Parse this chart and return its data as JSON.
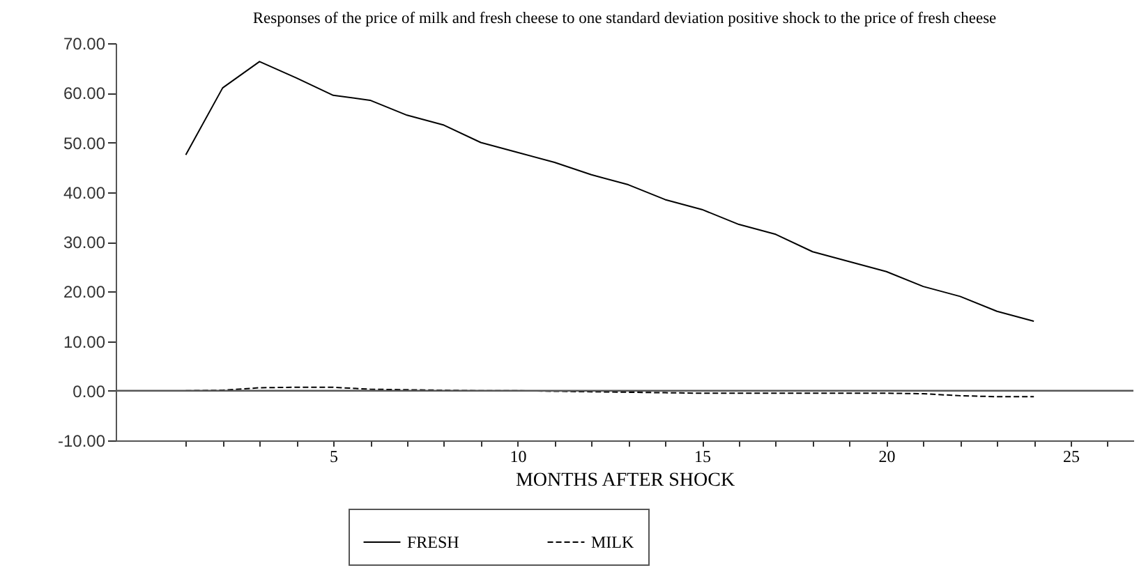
{
  "chart_data": {
    "type": "line",
    "title": "Responses of the price of milk and fresh cheese to one standard deviation positive shock to the price of fresh cheese",
    "xlabel": "MONTHS AFTER SHOCK",
    "x": [
      1,
      2,
      3,
      4,
      5,
      6,
      7,
      8,
      9,
      10,
      11,
      12,
      13,
      14,
      15,
      16,
      17,
      18,
      19,
      20,
      21,
      22,
      23,
      24
    ],
    "series": [
      {
        "name": "FRESH",
        "color": "#000000",
        "line_style": "solid",
        "values": [
          47.5,
          61,
          66.3,
          63,
          59.5,
          58.5,
          55.5,
          53.5,
          50,
          48,
          46,
          43.5,
          41.5,
          38.5,
          36.5,
          33.5,
          31.5,
          28,
          26,
          24,
          21,
          19,
          16,
          14
        ]
      },
      {
        "name": "MILK",
        "color": "#000000",
        "line_style": "dashed",
        "values": [
          0,
          0.1,
          0.6,
          0.7,
          0.7,
          0.3,
          0.2,
          0.1,
          0,
          0,
          -0.1,
          -0.2,
          -0.3,
          -0.4,
          -0.5,
          -0.5,
          -0.5,
          -0.5,
          -0.5,
          -0.5,
          -0.6,
          -1,
          -1.2,
          -1.2
        ]
      }
    ],
    "xlim": [
      -0.9,
      26.7
    ],
    "ylim": [
      -10,
      70
    ],
    "xticks": [
      {
        "value": 1,
        "label": null
      },
      {
        "value": 2,
        "label": null
      },
      {
        "value": 3,
        "label": null
      },
      {
        "value": 4,
        "label": null
      },
      5,
      {
        "value": 6,
        "label": null
      },
      {
        "value": 7,
        "label": null
      },
      {
        "value": 8,
        "label": null
      },
      {
        "value": 9,
        "label": null
      },
      10,
      {
        "value": 11,
        "label": null
      },
      {
        "value": 12,
        "label": null
      },
      {
        "value": 13,
        "label": null
      },
      {
        "value": 14,
        "label": null
      },
      15,
      {
        "value": 16,
        "label": null
      },
      {
        "value": 17,
        "label": null
      },
      {
        "value": 18,
        "label": null
      },
      {
        "value": 19,
        "label": null
      },
      20,
      {
        "value": 21,
        "label": null
      },
      {
        "value": 22,
        "label": null
      },
      {
        "value": 23,
        "label": null
      },
      {
        "value": 24,
        "label": null
      },
      25,
      {
        "value": 26,
        "label": null
      }
    ],
    "yticks": [
      {
        "value": -10,
        "label": "-10.00"
      },
      {
        "value": 0,
        "label": "0.00"
      },
      {
        "value": 10,
        "label": "10.00"
      },
      {
        "value": 20,
        "label": "20.00"
      },
      {
        "value": 30,
        "label": "30.00"
      },
      {
        "value": 40,
        "label": "40.00"
      },
      {
        "value": 50,
        "label": "50.00"
      },
      {
        "value": 60,
        "label": "60.00"
      },
      {
        "value": 70,
        "label": "70.00"
      }
    ],
    "ref_lines": [
      {
        "axis": "y",
        "value": 0,
        "color": "#555555"
      }
    ],
    "grid": false,
    "legend": "bottom",
    "marker": "none"
  }
}
